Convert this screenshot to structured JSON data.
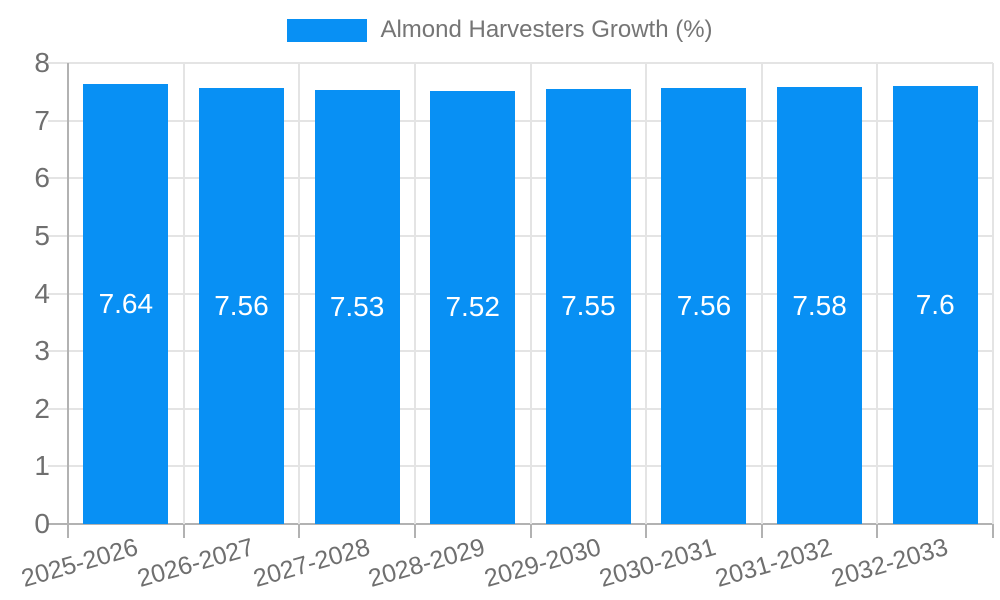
{
  "chart_data": {
    "type": "bar",
    "title": "",
    "legend": [
      {
        "label": "Almond Harvesters Growth (%)",
        "color": "#0890F4"
      }
    ],
    "legend_position": "top",
    "categories": [
      "2025-2026",
      "2026-2027",
      "2027-2028",
      "2028-2029",
      "2029-2030",
      "2030-2031",
      "2031-2032",
      "2032-2033"
    ],
    "series": [
      {
        "name": "Almond Harvesters Growth (%)",
        "values": [
          7.64,
          7.56,
          7.53,
          7.52,
          7.55,
          7.56,
          7.58,
          7.6
        ]
      }
    ],
    "value_labels": [
      "7.64",
      "7.56",
      "7.53",
      "7.52",
      "7.55",
      "7.56",
      "7.58",
      "7.6"
    ],
    "xlabel": "",
    "ylabel": "",
    "ylim": [
      0,
      8
    ],
    "yticks": [
      0,
      1,
      2,
      3,
      4,
      5,
      6,
      7,
      8
    ],
    "grid": true
  },
  "colors": {
    "bar": "#0890F4",
    "gridline": "#e4e4e4",
    "axis": "#b2b2b2",
    "axis_label": "#6f6f6f",
    "legend_text": "#757575",
    "value_text": "#ffffff",
    "background": "#ffffff"
  }
}
